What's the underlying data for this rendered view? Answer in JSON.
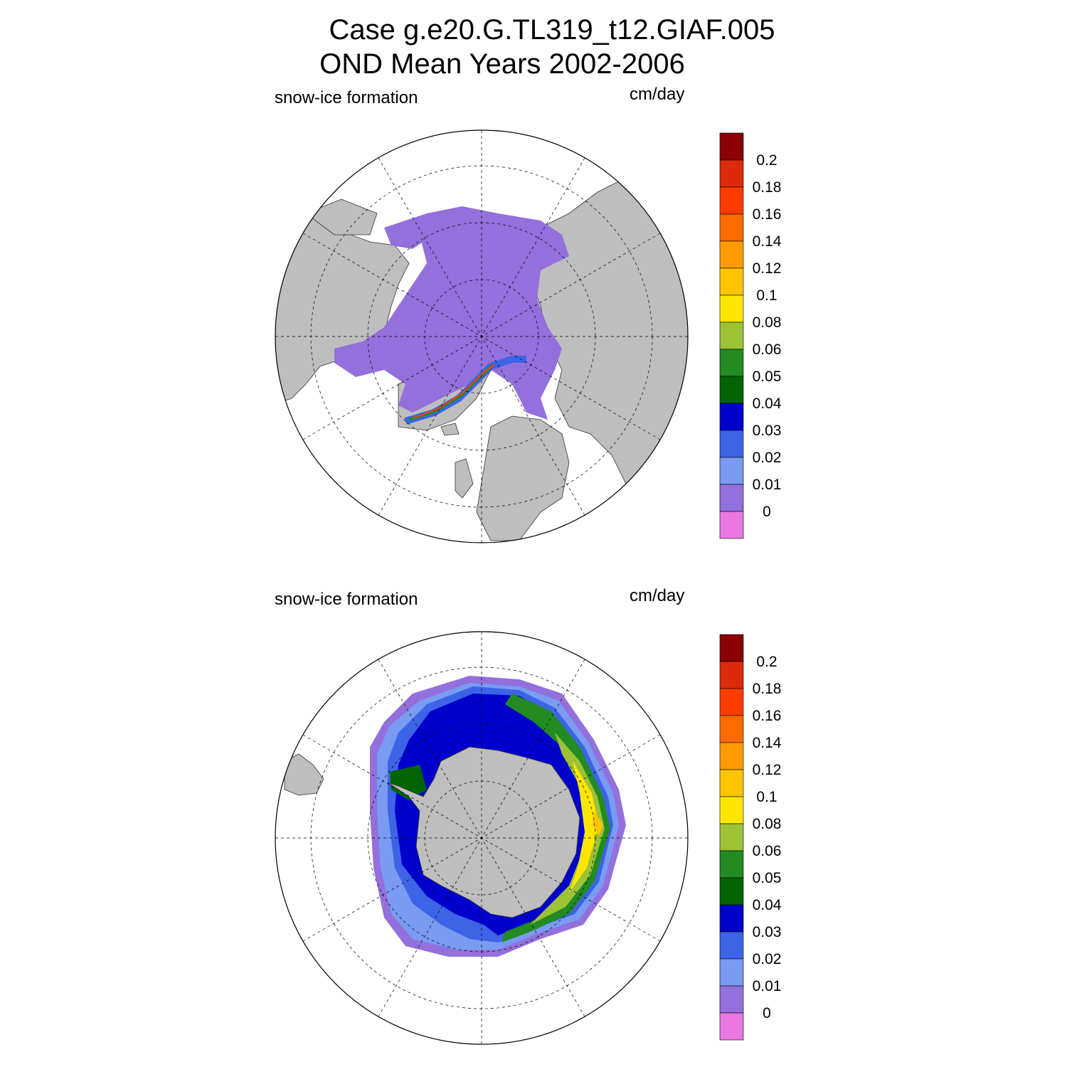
{
  "figure": {
    "title_line1": "Case g.e20.G.TL319_t12.GIAF.005",
    "title_line2": "OND Mean   Years 2002-2006"
  },
  "panels": [
    {
      "id": "north",
      "left_label": "snow-ice formation",
      "right_label": "cm/day"
    },
    {
      "id": "south",
      "left_label": "snow-ice formation",
      "right_label": "cm/day"
    }
  ],
  "colorbar": {
    "levels": [
      "0.2",
      "0.18",
      "0.16",
      "0.14",
      "0.12",
      "0.1",
      "0.08",
      "0.06",
      "0.05",
      "0.04",
      "0.03",
      "0.02",
      "0.01",
      "0"
    ],
    "colors": [
      "#8b0000",
      "#dc2a0c",
      "#ff3c00",
      "#ff6a00",
      "#ff9a00",
      "#ffc400",
      "#ffe600",
      "#9cc236",
      "#228b22",
      "#006400",
      "#0000cd",
      "#3d64e6",
      "#7a9bf2",
      "#9370db",
      "#e878e0"
    ]
  },
  "colors": {
    "land": "#bebebe",
    "ocean": "#ffffff",
    "grid": "#000000"
  }
}
